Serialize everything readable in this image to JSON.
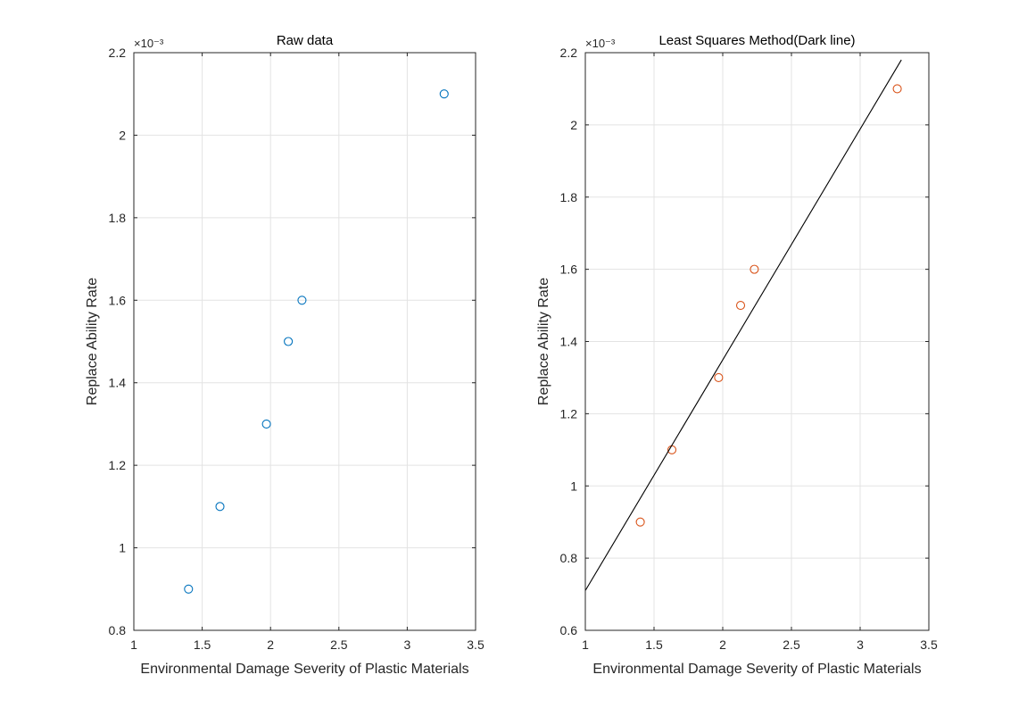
{
  "chart_data": [
    {
      "type": "scatter",
      "title": "Raw data",
      "xlabel": "Environmental Damage Severity of Plastic Materials",
      "ylabel": "Replace Ability Rate",
      "y_exponent_label": "×10⁻³",
      "xlim": [
        1,
        3.5
      ],
      "ylim": [
        0.8,
        2.2
      ],
      "xticks": [
        1,
        1.5,
        2,
        2.5,
        3,
        3.5
      ],
      "xtick_labels": [
        "1",
        "1.5",
        "2",
        "2.5",
        "3",
        "3.5"
      ],
      "yticks": [
        0.8,
        1,
        1.2,
        1.4,
        1.6,
        1.8,
        2,
        2.2
      ],
      "ytick_labels": [
        "0.8",
        "1",
        "1.2",
        "1.4",
        "1.6",
        "1.8",
        "2",
        "2.2"
      ],
      "grid": true,
      "series": [
        {
          "marker": "circle",
          "color": "#0072BD",
          "x": [
            1.4,
            1.63,
            1.97,
            2.13,
            2.23,
            3.27
          ],
          "y": [
            0.9,
            1.1,
            1.3,
            1.5,
            1.6,
            2.1
          ]
        }
      ]
    },
    {
      "type": "scatter",
      "title": "Least Squares Method(Dark line)",
      "xlabel": "Environmental Damage Severity of Plastic Materials",
      "ylabel": "Replace Ability Rate",
      "y_exponent_label": "×10⁻³",
      "xlim": [
        1,
        3.5
      ],
      "ylim": [
        0.6,
        2.2
      ],
      "xticks": [
        1,
        1.5,
        2,
        2.5,
        3,
        3.5
      ],
      "xtick_labels": [
        "1",
        "1.5",
        "2",
        "2.5",
        "3",
        "3.5"
      ],
      "yticks": [
        0.6,
        0.8,
        1,
        1.2,
        1.4,
        1.6,
        1.8,
        2,
        2.2
      ],
      "ytick_labels": [
        "0.6",
        "0.8",
        "1",
        "1.2",
        "1.4",
        "1.6",
        "1.8",
        "2",
        "2.2"
      ],
      "grid": true,
      "series": [
        {
          "marker": "circle",
          "color": "#D95319",
          "x": [
            1.4,
            1.63,
            1.97,
            2.13,
            2.23,
            3.27
          ],
          "y": [
            0.9,
            1.1,
            1.3,
            1.5,
            1.6,
            2.1
          ]
        },
        {
          "marker": "line",
          "color": "#000000",
          "x": [
            1.0,
            3.3
          ],
          "y": [
            0.71,
            2.18
          ]
        }
      ]
    }
  ]
}
